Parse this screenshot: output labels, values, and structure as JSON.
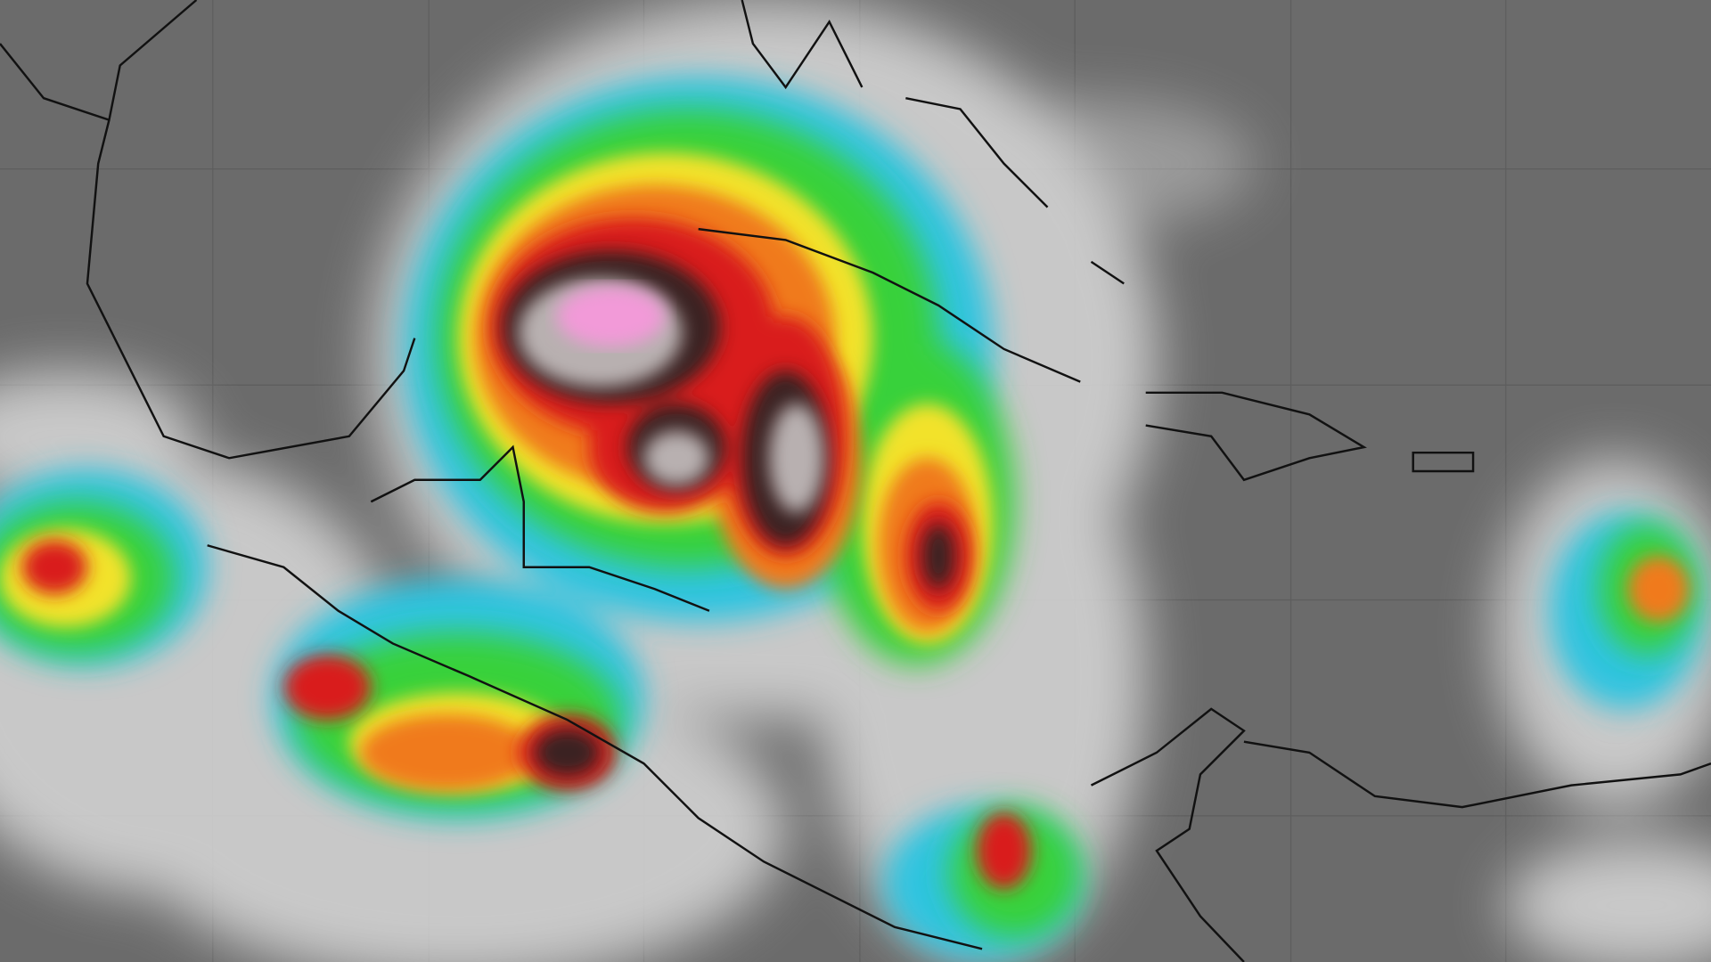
{
  "map": {
    "kind": "infrared satellite imagery",
    "colors": {
      "background": "#6b6b6b",
      "cloud": "#d9d9d9",
      "cyan": "#2ec4e0",
      "green": "#39d13a",
      "yellow": "#f2e22a",
      "orange": "#f07a1a",
      "red": "#d91c1c",
      "dark": "#3a2020",
      "pink": "#f29ad8",
      "coastline": "#111111"
    }
  }
}
